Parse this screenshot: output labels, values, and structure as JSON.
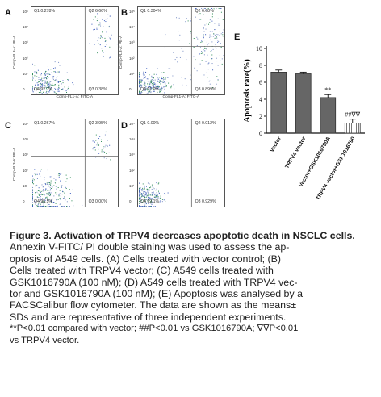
{
  "panels": [
    {
      "letter": "A",
      "x_title": "Comp-FL1-A: FITC-A",
      "y_title": "Comp-FL3-A: PE-A",
      "q1": "Q1",
      "q1_val": "0.278%",
      "q2": "Q2",
      "q2_val": "6.66%",
      "q3": "Q3",
      "q3_val": "0.38%",
      "q4": "Q4",
      "q4_val": "92.7%"
    },
    {
      "letter": "B",
      "x_title": "Comp-FL1-A: FITC-A",
      "y_title": "Comp-FL3-A: PE-A",
      "q1": "Q1",
      "q1_val": "0.304%",
      "q2": "Q2",
      "q2_val": "6.68%",
      "q3": "Q3",
      "q3_val": "0.899%",
      "q4": "Q4",
      "q4_val": "91.0%"
    },
    {
      "letter": "C",
      "x_title": "",
      "y_title": "Comp-FL3-A: PE-A",
      "q1": "Q1",
      "q1_val": "0.267%",
      "q2": "Q2",
      "q2_val": "3.95%",
      "q3": "Q3",
      "q3_val": "0.00%",
      "q4": "Q4",
      "q4_val": "95.5%"
    },
    {
      "letter": "D",
      "x_title": "",
      "y_title": "",
      "q1": "Q1",
      "q1_val": "0.00%",
      "q2": "Q2",
      "q2_val": "0.012%",
      "q3": "Q3",
      "q3_val": "0.929%",
      "q4": "Q4",
      "q4_val": "99.1%"
    }
  ],
  "yticks": [
    "10⁵",
    "10⁴",
    "10³",
    "10²",
    "10¹",
    "0"
  ],
  "chart_data": {
    "type": "bar",
    "panel_letter": "E",
    "ylabel": "Apoptosis rate(%)",
    "ylim": [
      0,
      10
    ],
    "yticks": [
      0,
      2,
      4,
      6,
      8,
      10
    ],
    "categories": [
      "Vector",
      "TRPV4 vector",
      "Vector+GSK1016790A",
      "TRPV4 vector+GSK1016790"
    ],
    "values": [
      7.2,
      7.0,
      4.2,
      1.2
    ],
    "errors": [
      0.25,
      0.2,
      0.35,
      0.45
    ],
    "annotations": [
      "",
      "",
      "**",
      "##∇∇"
    ],
    "colors": {
      "filled": "#666666",
      "hatched_fill": "#ffffff",
      "stroke": "#333333"
    }
  },
  "caption": {
    "title": "Figure 3. Activation of TRPV4 decreases apoptotic death in NSCLC cells.",
    "lines": [
      "Annexin V-FITC/ PI double staining was used to assess the ap-",
      "optosis of A549 cells. (A) Cells treated with vector control; (B)",
      "Cells treated with TRPV4 vector; (C) A549 cells treated with",
      "GSK1016790A (100 nM); (D) A549 cells treated with TRPV4 vec-",
      "tor and GSK1016790A (100 nM); (E) Apoptosis was analysed by a",
      "FACSCalibur flow cytometer. The data are shown as the means±",
      "SDs and are representative of three independent experiments."
    ],
    "note1": "**P<0.01 compared with vector; ##P<0.01 vs GSK1016790A; ∇∇P<0.01",
    "note2": "vs TRPV4 vector."
  }
}
